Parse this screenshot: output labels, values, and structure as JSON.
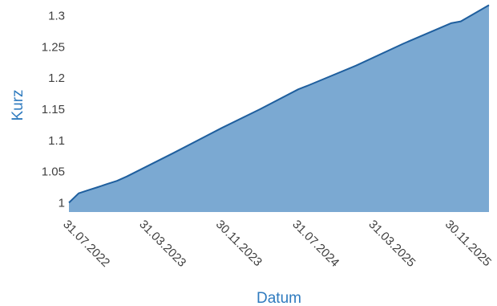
{
  "chart_data": {
    "type": "area",
    "title": "",
    "xlabel": "Datum",
    "ylabel": "Kurz",
    "ylim": [
      0.985,
      1.315
    ],
    "yticks": [
      1,
      1.05,
      1.1,
      1.15,
      1.2,
      1.25,
      1.3
    ],
    "ytick_labels": [
      "1",
      "1.05",
      "1.1",
      "1.15",
      "1.2",
      "1.25",
      "1.3"
    ],
    "xlim": [
      "2022-07-31",
      "2026-03-31"
    ],
    "xticks": [
      "2022-07-31",
      "2023-03-31",
      "2023-11-30",
      "2024-07-31",
      "2025-03-31",
      "2025-11-30"
    ],
    "xtick_labels": [
      "31.07.2022",
      "31.03.2023",
      "30.11.2023",
      "31.07.2024",
      "31.03.2025",
      "30.11.2025"
    ],
    "grid": false,
    "legend": false,
    "series": [
      {
        "x": [
          "2022-07-31",
          "2022-08-31",
          "2022-09-30",
          "2022-10-31",
          "2022-11-30",
          "2022-12-31",
          "2023-01-31",
          "2023-06-30",
          "2023-11-30",
          "2024-03-31",
          "2024-07-31",
          "2024-08-31",
          "2025-01-31",
          "2025-06-30",
          "2025-11-30",
          "2025-12-31",
          "2026-03-31"
        ],
        "values": [
          1.0,
          1.015,
          1.02,
          1.025,
          1.03,
          1.035,
          1.042,
          1.08,
          1.12,
          1.15,
          1.182,
          1.188,
          1.22,
          1.255,
          1.288,
          1.291,
          1.317
        ]
      }
    ],
    "colors": {
      "fill": "#7ba9d2",
      "line": "#1f5f9e",
      "axis_title": "#2f7bbf",
      "tick": "#404040"
    }
  }
}
